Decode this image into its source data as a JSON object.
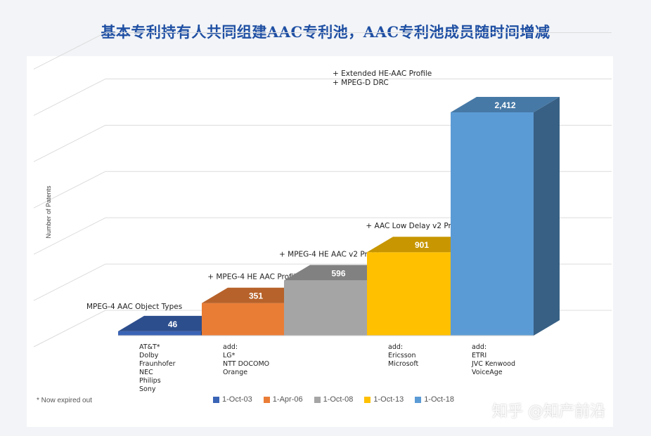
{
  "title": "基本专利持有人共同组建AAC专利池，AAC专利池成员随时间增减",
  "watermark": "知乎 @知产前沿",
  "footnote": "* Now expired out",
  "chart_data": {
    "type": "bar",
    "ylabel": "Number of Patents",
    "ylim": [
      0,
      3000
    ],
    "grid": true,
    "legend_position": "bottom",
    "categories": [
      "1-Oct-03",
      "1-Apr-06",
      "1-Oct-08",
      "1-Oct-13",
      "1-Oct-18"
    ],
    "values": [
      46,
      351,
      596,
      901,
      2412
    ],
    "value_labels": [
      "46",
      "351",
      "596",
      "901",
      "2,412"
    ],
    "colors": [
      "#3a64b5",
      "#ea7d36",
      "#a5a5a5",
      "#ffc000",
      "#5b9bd5"
    ],
    "annotations_above": [
      [
        "MPEG-4 AAC Object Types"
      ],
      [
        "+ MPEG-4 HE AAC Profile"
      ],
      [
        "+ MPEG-4 HE AAC v2 Profile"
      ],
      [
        "+ AAC Low Delay v2 Profile"
      ],
      [
        "+ Extended HE-AAC Profile",
        "+ MPEG-D DRC"
      ]
    ],
    "annotations_below": [
      [
        "AT&T*",
        "Dolby",
        "Fraunhofer",
        "NEC",
        "Philips",
        "Sony"
      ],
      [
        "add:",
        "LG*",
        "NTT DOCOMO",
        "Orange"
      ],
      [],
      [
        "add:",
        "Ericsson",
        "Microsoft"
      ],
      [
        "add:",
        "ETRI",
        "JVC Kenwood",
        "VoiceAge"
      ]
    ]
  }
}
